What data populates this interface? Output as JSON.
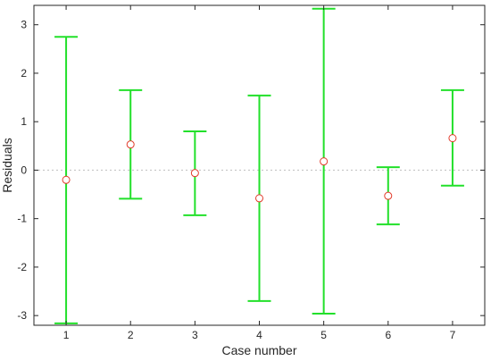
{
  "chart_data": {
    "type": "scatter",
    "subtype": "errorbar",
    "title": "",
    "xlabel": "Case number",
    "ylabel": "Residuals",
    "xlim": [
      0.5,
      7.5
    ],
    "ylim": [
      -3.2,
      3.4
    ],
    "xticks": [
      "1",
      "2",
      "3",
      "4",
      "5",
      "6",
      "7"
    ],
    "yticks": [
      "3",
      "2",
      "1",
      "0",
      "-1",
      "-2",
      "-3"
    ],
    "x": [
      1,
      2,
      3,
      4,
      5,
      6,
      7
    ],
    "y": [
      -0.2,
      0.53,
      -0.06,
      -0.58,
      0.18,
      -0.53,
      0.66
    ],
    "lower": [
      -3.16,
      -0.59,
      -0.93,
      -2.7,
      -2.96,
      -1.12,
      -0.32
    ],
    "upper": [
      2.75,
      1.65,
      0.8,
      1.54,
      3.33,
      0.06,
      1.65
    ],
    "grid": false,
    "colors": {
      "errorbar": "#22e02a",
      "marker": "#e23b2b",
      "axis": "#262626",
      "zero_line": "#bfbfbf"
    }
  }
}
